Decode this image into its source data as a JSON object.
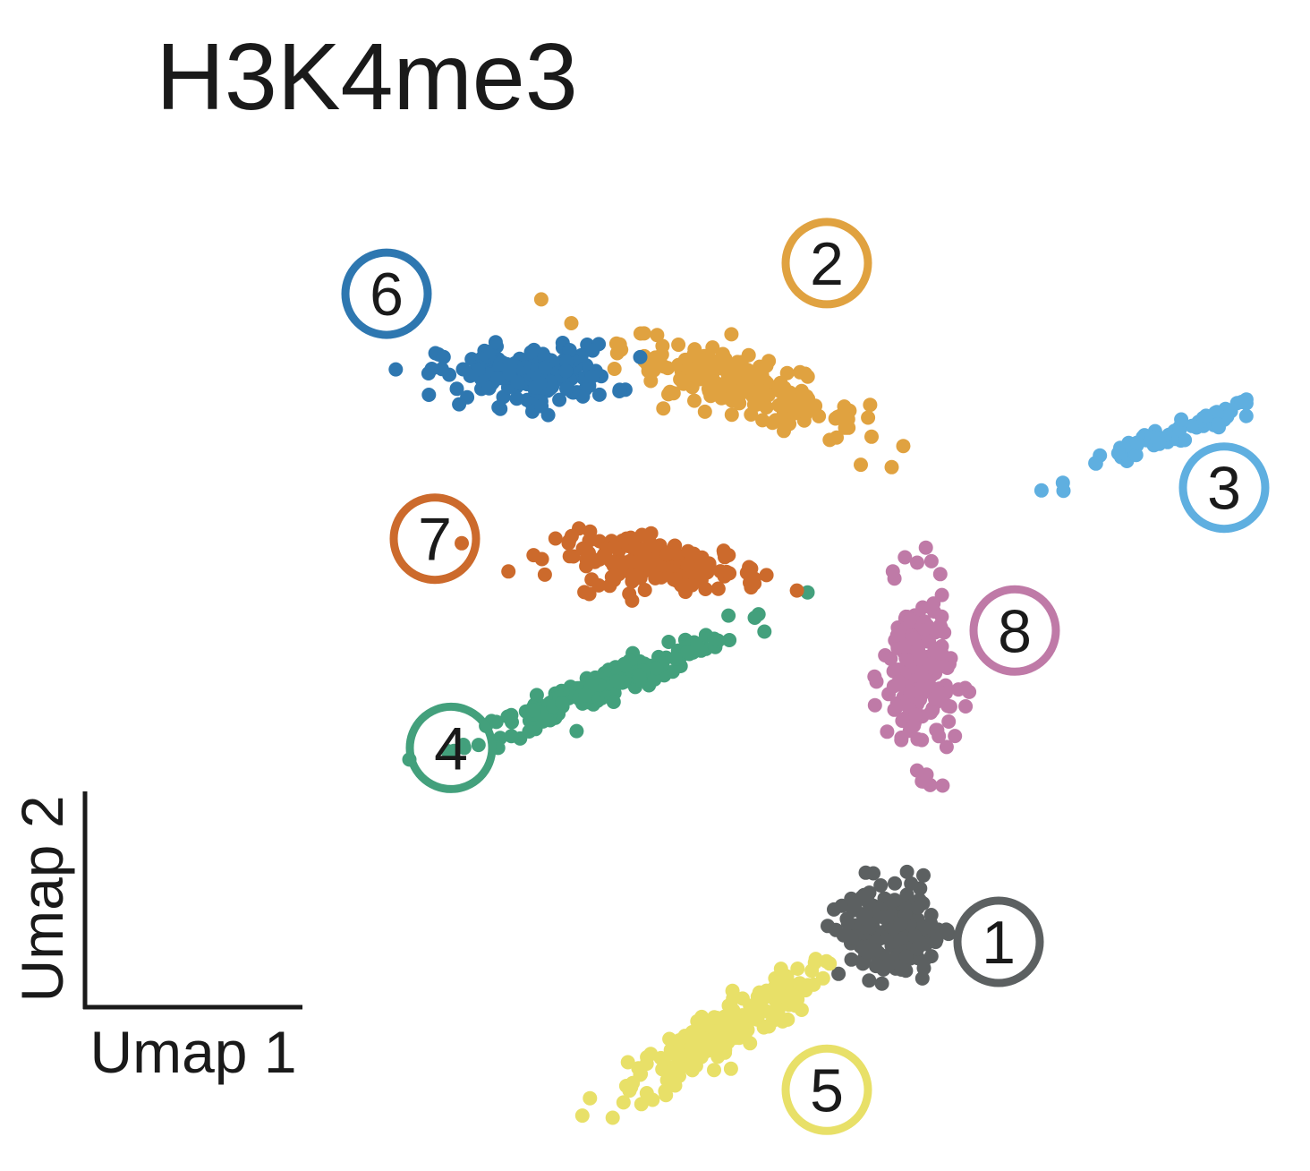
{
  "chart_data": {
    "type": "scatter",
    "title": "H3K4me3",
    "xlabel": "Umap 1",
    "ylabel": "Umap 2",
    "x_range": [
      0,
      10
    ],
    "y_range": [
      0,
      10
    ],
    "axis_ticks": false,
    "grid": false,
    "legend": "cluster numbers circled next to each cluster",
    "clusters": [
      {
        "id": "1",
        "label": "1",
        "color": "#5c6061",
        "center": [
          6.3,
          2.1
        ],
        "spread": [
          0.55,
          0.9
        ],
        "count": 175,
        "tilt": -0.75,
        "label_pos": [
          7.3,
          2.0
        ]
      },
      {
        "id": "2",
        "label": "2",
        "color": "#e0a240",
        "center": [
          4.9,
          7.45
        ],
        "spread": [
          1.3,
          0.5
        ],
        "count": 200,
        "tilt": -0.35,
        "label_pos": [
          5.7,
          8.65
        ]
      },
      {
        "id": "3",
        "label": "3",
        "color": "#5fafe0",
        "center": [
          8.9,
          6.95
        ],
        "spread": [
          1.1,
          0.18
        ],
        "count": 70,
        "tilt": 0.38,
        "label_pos": [
          9.4,
          6.45
        ]
      },
      {
        "id": "4",
        "label": "4",
        "color": "#43a07c",
        "center": [
          3.6,
          4.5
        ],
        "spread": [
          1.5,
          0.28
        ],
        "count": 185,
        "tilt": 0.42,
        "label_pos": [
          2.2,
          3.9
        ]
      },
      {
        "id": "5",
        "label": "5",
        "color": "#e8e068",
        "center": [
          4.7,
          1.1
        ],
        "spread": [
          1.15,
          0.45
        ],
        "count": 200,
        "tilt": 0.58,
        "label_pos": [
          5.7,
          0.55
        ]
      },
      {
        "id": "6",
        "label": "6",
        "color": "#2e77b0",
        "center": [
          2.9,
          7.55
        ],
        "spread": [
          0.9,
          0.55
        ],
        "count": 170,
        "tilt": 0.0,
        "label_pos": [
          1.6,
          8.35
        ]
      },
      {
        "id": "7",
        "label": "7",
        "color": "#cc6a2c",
        "center": [
          4.15,
          5.7
        ],
        "spread": [
          1.1,
          0.45
        ],
        "count": 150,
        "tilt": -0.1,
        "label_pos": [
          2.05,
          5.95
        ]
      },
      {
        "id": "8",
        "label": "8",
        "color": "#bf7aa7",
        "center": [
          6.55,
          4.6
        ],
        "spread": [
          0.35,
          1.6
        ],
        "count": 190,
        "tilt": 0.05,
        "label_pos": [
          7.45,
          5.05
        ]
      }
    ]
  }
}
